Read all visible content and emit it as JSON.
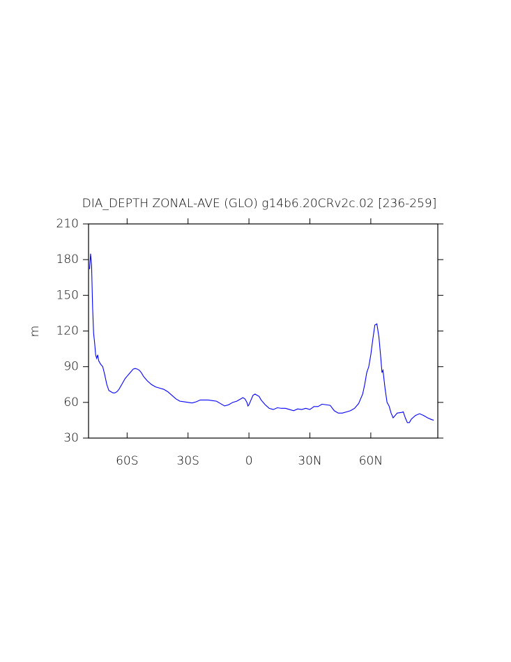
{
  "chart_data": {
    "type": "line",
    "title": "DIA_DEPTH ZONAL-AVE (GLO) g14b6.20CRv2c.02 [236-259]",
    "y_label": "m",
    "series": [
      {
        "color": "#0000ff",
        "x": [
          -78.5,
          -78,
          -77.5,
          -77,
          -76.5,
          -76,
          -75.5,
          -75,
          -74.5,
          -74,
          -73,
          -72,
          -71,
          -70,
          -69,
          -68,
          -67,
          -66,
          -65,
          -64,
          -63,
          -62,
          -61,
          -60,
          -59,
          -58,
          -57,
          -56,
          -55,
          -54,
          -53,
          -52,
          -51,
          -50,
          -48,
          -46,
          -44,
          -42,
          -40,
          -38,
          -36,
          -34,
          -32,
          -30,
          -28,
          -26,
          -24,
          -22,
          -20,
          -18,
          -16,
          -14,
          -12,
          -10,
          -8,
          -6,
          -4,
          -3,
          -2,
          -1,
          -0.5,
          0,
          1,
          2,
          3,
          4,
          5,
          6,
          8,
          10,
          12,
          14,
          16,
          18,
          20,
          22,
          24,
          26,
          28,
          30,
          32,
          34,
          36,
          38,
          40,
          42,
          44,
          46,
          48,
          50,
          52,
          54,
          56,
          57,
          58,
          59,
          60,
          61,
          62,
          63,
          64,
          65,
          65.5,
          66,
          67,
          68,
          69,
          70,
          71,
          72,
          73,
          75,
          76,
          77,
          78,
          79,
          80,
          82,
          84,
          86,
          88,
          90,
          91
        ],
        "values": [
          172,
          185,
          175,
          140,
          118,
          110,
          100,
          97,
          100,
          95,
          92,
          90,
          83,
          75,
          70,
          69,
          68,
          68,
          69,
          71,
          74,
          77,
          80,
          82,
          84,
          86,
          88,
          88.5,
          88,
          87,
          85,
          82,
          80,
          78,
          75,
          73,
          72,
          71,
          69,
          66,
          63,
          61,
          60.5,
          60,
          59.5,
          60.5,
          62,
          62,
          62,
          61.5,
          61,
          59,
          57,
          58,
          60,
          61,
          63,
          64,
          63,
          60,
          57,
          58,
          62,
          66,
          67,
          66,
          65,
          62,
          58,
          55,
          54,
          55.5,
          55,
          55,
          54,
          53,
          54.5,
          54,
          55,
          54,
          56.5,
          56.5,
          58.5,
          58,
          57.5,
          53,
          51,
          51,
          52,
          53,
          55,
          59,
          67,
          75,
          85,
          90,
          100,
          113,
          125,
          126,
          115,
          96,
          85,
          87,
          72,
          60,
          57,
          51,
          47,
          49,
          51,
          51.5,
          52,
          47,
          43,
          43,
          46,
          49,
          50.5,
          49,
          47,
          45.5,
          45
        ]
      }
    ],
    "xlim": [
      -79,
      93
    ],
    "xticks": [
      {
        "value": -60,
        "label": "60S"
      },
      {
        "value": -30,
        "label": "30S"
      },
      0,
      {
        "value": 30,
        "label": "30N"
      },
      {
        "value": 60,
        "label": "60N"
      }
    ],
    "ylim": [
      30,
      210
    ],
    "yticks": [
      30,
      60,
      90,
      120,
      150,
      180,
      210
    ]
  }
}
